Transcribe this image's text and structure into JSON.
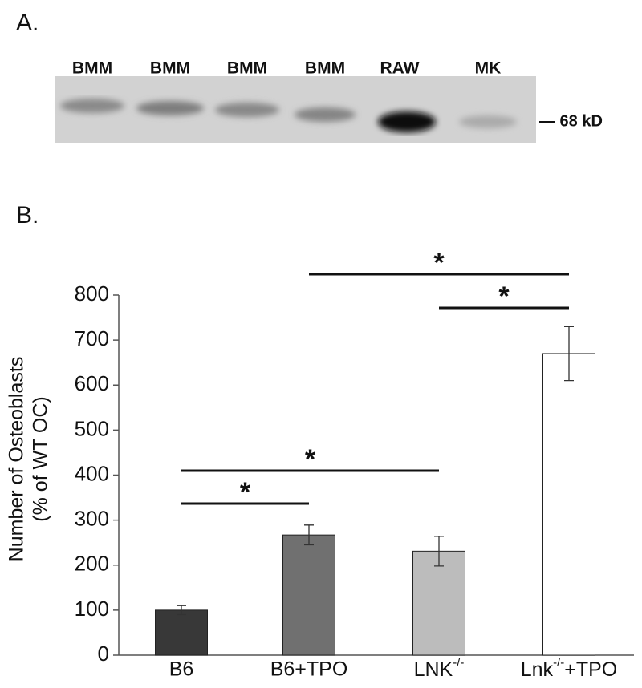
{
  "blot": {
    "panel_label": "A.",
    "lanes": [
      "BMM",
      "BMM",
      "BMM",
      "BMM",
      "RAW",
      "MK"
    ],
    "marker": "— 68 kD"
  },
  "chart_data": {
    "type": "bar",
    "panel_label": "B.",
    "ylabel": [
      "Number of Osteoblasts",
      "(% of WT OC)"
    ],
    "categories": [
      "B6",
      "B6+TPO",
      "LNK-/-",
      "Lnk-/-+TPO"
    ],
    "values": [
      100,
      267,
      231,
      670
    ],
    "errors": [
      10,
      22,
      33,
      60
    ],
    "colors": [
      "#383838",
      "#707070",
      "#bcbcbc",
      "#ffffff"
    ],
    "ylim": [
      0,
      800
    ],
    "yticks": [
      0,
      100,
      200,
      300,
      400,
      500,
      600,
      700,
      800
    ],
    "significance": [
      {
        "between": [
          0,
          1
        ],
        "label": "*"
      },
      {
        "between": [
          0,
          2
        ],
        "label": "*"
      },
      {
        "between": [
          2,
          3
        ],
        "label": "*"
      },
      {
        "between": [
          1,
          3
        ],
        "label": "*"
      }
    ]
  }
}
